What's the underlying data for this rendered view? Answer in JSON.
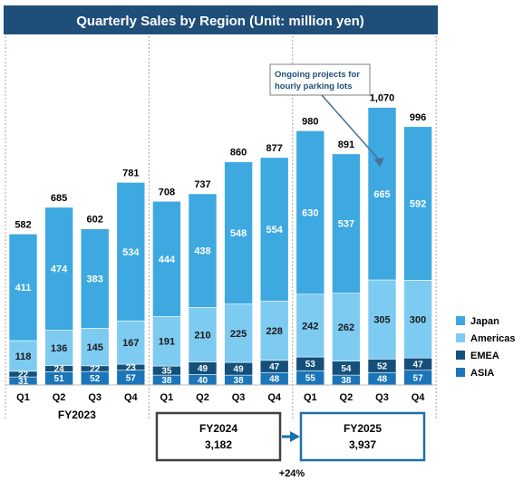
{
  "colors": {
    "title_bg": "#1F4E79",
    "title_text": "#FFFFFF",
    "japan": "#3DA9E0",
    "americas": "#7ECBF2",
    "emea": "#14507A",
    "asia": "#1B75B9",
    "label_light": "#FFFFFF",
    "label_dark": "#000000",
    "divider": "#A6A6A6",
    "fy2024_box_border": "#404040",
    "fy2025_box_border": "#1F6FA8",
    "arrow": "#1F6FA8"
  },
  "chart_data": {
    "type": "bar",
    "stacked": true,
    "title": "Quarterly Sales by Region (Unit: million yen)",
    "categories": [
      "Q1",
      "Q2",
      "Q3",
      "Q4",
      "Q1",
      "Q2",
      "Q3",
      "Q4",
      "Q1",
      "Q2",
      "Q3",
      "Q4"
    ],
    "fiscal_years": [
      {
        "label": "FY2023",
        "quarters": [
          0,
          1,
          2,
          3
        ]
      },
      {
        "label": "FY2024",
        "quarters": [
          4,
          5,
          6,
          7
        ]
      },
      {
        "label": "FY2025",
        "quarters": [
          8,
          9,
          10,
          11
        ]
      }
    ],
    "series": [
      {
        "name": "ASIA",
        "color_key": "asia",
        "values": [
          31,
          51,
          52,
          57,
          38,
          40,
          38,
          48,
          55,
          38,
          48,
          57
        ]
      },
      {
        "name": "EMEA",
        "color_key": "emea",
        "values": [
          22,
          24,
          22,
          23,
          35,
          49,
          49,
          47,
          53,
          54,
          52,
          47
        ]
      },
      {
        "name": "Americas",
        "color_key": "americas",
        "values": [
          118,
          136,
          145,
          167,
          191,
          210,
          225,
          228,
          242,
          262,
          305,
          300
        ]
      },
      {
        "name": "Japan",
        "color_key": "japan",
        "values": [
          411,
          474,
          383,
          534,
          444,
          438,
          548,
          554,
          630,
          537,
          665,
          592
        ]
      }
    ],
    "totals": [
      582,
      685,
      602,
      781,
      708,
      737,
      860,
      877,
      980,
      891,
      1070,
      996
    ],
    "total_labels": [
      "582",
      "685",
      "602",
      "781",
      "708",
      "737",
      "860",
      "877",
      "980",
      "891",
      "1,070",
      "996"
    ],
    "ylim": [
      0,
      1100
    ],
    "legend": {
      "position": "right",
      "order": [
        "Japan",
        "Americas",
        "EMEA",
        "ASIA"
      ]
    },
    "grid": false,
    "annotation": {
      "text_lines": [
        "Ongoing projects for",
        "hourly parking lots"
      ],
      "target_index": 10
    },
    "summary": {
      "fy2024": {
        "label": "FY2024",
        "value": "3,182"
      },
      "fy2025": {
        "label": "FY2025",
        "value": "3,937"
      },
      "growth": "+24%"
    }
  }
}
